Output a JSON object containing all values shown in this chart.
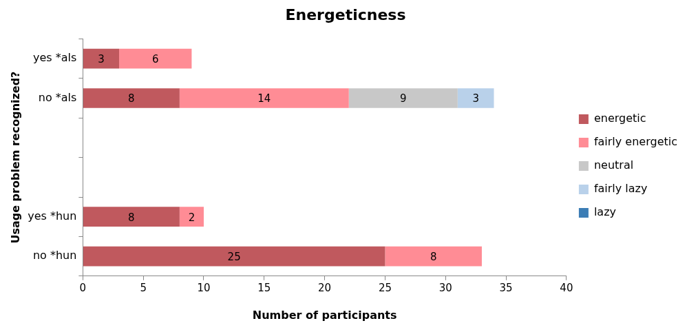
{
  "chart_data": {
    "type": "bar",
    "orientation": "horizontal",
    "stacked": true,
    "title": "Energeticness",
    "xlabel": "Number of participants",
    "ylabel": "Usage problem recognized?",
    "categories": [
      "yes *als",
      "no *als",
      null,
      null,
      "yes *hun",
      "no *hun"
    ],
    "series": [
      {
        "name": "energetic",
        "color": "#c0595e",
        "values": [
          3,
          8,
          null,
          null,
          8,
          25
        ]
      },
      {
        "name": "fairly energetic",
        "color": "#ff8c95",
        "values": [
          6,
          14,
          null,
          null,
          2,
          8
        ]
      },
      {
        "name": "neutral",
        "color": "#c8c8c8",
        "values": [
          null,
          9,
          null,
          null,
          null,
          null
        ]
      },
      {
        "name": "fairly lazy",
        "color": "#b9d1ea",
        "values": [
          null,
          3,
          null,
          null,
          null,
          null
        ]
      },
      {
        "name": "lazy",
        "color": "#3c7db5",
        "values": [
          null,
          null,
          null,
          null,
          null,
          null
        ]
      }
    ],
    "xlim": [
      0,
      40
    ],
    "xticks": [
      0,
      5,
      10,
      15,
      20,
      25,
      30,
      35,
      40
    ],
    "data_labels": true,
    "legend": "right"
  }
}
